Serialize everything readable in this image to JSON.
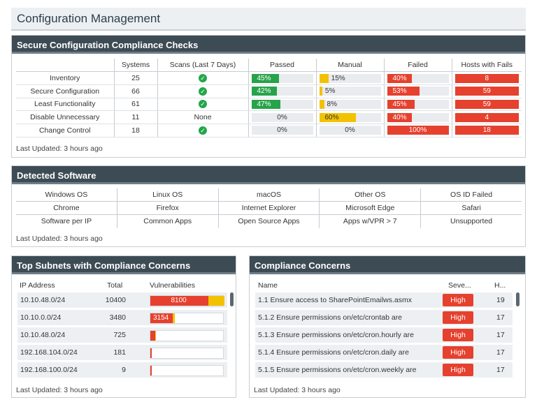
{
  "page": {
    "title": "Configuration Management"
  },
  "compliance_checks": {
    "title": "Secure Configuration Compliance Checks",
    "columns": [
      "",
      "Systems",
      "Scans (Last 7 Days)",
      "Passed",
      "Manual",
      "Failed",
      "Hosts with Fails"
    ],
    "rows": [
      {
        "name": "Inventory",
        "systems": "25",
        "scans": "check",
        "passed": 45,
        "passed_label": "45%",
        "manual": 15,
        "manual_label": "15%",
        "failed": 40,
        "failed_label": "40%",
        "hosts": "8"
      },
      {
        "name": "Secure Configuration",
        "systems": "66",
        "scans": "check",
        "passed": 42,
        "passed_label": "42%",
        "manual": 5,
        "manual_label": "5%",
        "failed": 53,
        "failed_label": "53%",
        "hosts": "59"
      },
      {
        "name": "Least Functionality",
        "systems": "61",
        "scans": "check",
        "passed": 47,
        "passed_label": "47%",
        "manual": 8,
        "manual_label": "8%",
        "failed": 45,
        "failed_label": "45%",
        "hosts": "59"
      },
      {
        "name": "Disable Unnecessary",
        "systems": "11",
        "scans": "None",
        "passed": 0,
        "passed_label": "0%",
        "manual": 60,
        "manual_label": "60%",
        "failed": 40,
        "failed_label": "40%",
        "hosts": "4"
      },
      {
        "name": "Change Control",
        "systems": "18",
        "scans": "check",
        "passed": 0,
        "passed_label": "0%",
        "manual": 0,
        "manual_label": "0%",
        "failed": 100,
        "failed_label": "100%",
        "hosts": "18"
      }
    ],
    "updated": "Last Updated: 3 hours ago"
  },
  "detected_software": {
    "title": "Detected Software",
    "rows": [
      [
        "Windows OS",
        "Linux OS",
        "macOS",
        "Other OS",
        "OS ID Failed"
      ],
      [
        "Chrome",
        "Firefox",
        "Internet Explorer",
        "Microsoft Edge",
        "Safari"
      ],
      [
        "Software per IP",
        "Common Apps",
        "Open Source Apps",
        "Apps w/VPR > 7",
        "Unsupported"
      ]
    ],
    "updated": "Last Updated: 3 hours ago"
  },
  "top_subnets": {
    "title": "Top Subnets with Compliance Concerns",
    "columns": [
      "IP Address",
      "Total",
      "Vulnerabilities"
    ],
    "rows": [
      {
        "ip": "10.10.48.0/24",
        "total": "10400",
        "critical": 8100,
        "critical_label": "8100",
        "high": 2300
      },
      {
        "ip": "10.10.0.0/24",
        "total": "3480",
        "critical": 3154,
        "critical_label": "3154",
        "high": 326
      },
      {
        "ip": "10.10.48.0/24",
        "total": "725",
        "critical": 650,
        "critical_label": "",
        "high": 75
      },
      {
        "ip": "192.168.104.0/24",
        "total": "181",
        "critical": 181,
        "critical_label": "",
        "high": 0
      },
      {
        "ip": "192.168.100.0/24",
        "total": "9",
        "critical": 9,
        "critical_label": "",
        "high": 0
      }
    ],
    "max_total": 10400,
    "updated": "Last Updated: 3 hours ago"
  },
  "concerns": {
    "title": "Compliance Concerns",
    "columns": [
      "Name",
      "Seve...",
      "H..."
    ],
    "rows": [
      {
        "name": "1.1 Ensure access to SharePointEmailws.asmx",
        "severity": "High",
        "hosts": "19"
      },
      {
        "name": "5.1.2 Ensure permissions on/etc/crontab are",
        "severity": "High",
        "hosts": "17"
      },
      {
        "name": "5.1.3 Ensure permissions on/etc/cron.hourly are",
        "severity": "High",
        "hosts": "17"
      },
      {
        "name": "5.1.4 Ensure permissions on/etc/cron.daily are",
        "severity": "High",
        "hosts": "17"
      },
      {
        "name": "5.1.5 Ensure permissions on/etc/cron.weekly are",
        "severity": "High",
        "hosts": "17"
      }
    ],
    "updated": "Last Updated: 3 hours ago"
  },
  "colors": {
    "header": "#3d4b55",
    "green": "#27a34a",
    "yellow": "#f2c200",
    "red": "#e5412e"
  }
}
